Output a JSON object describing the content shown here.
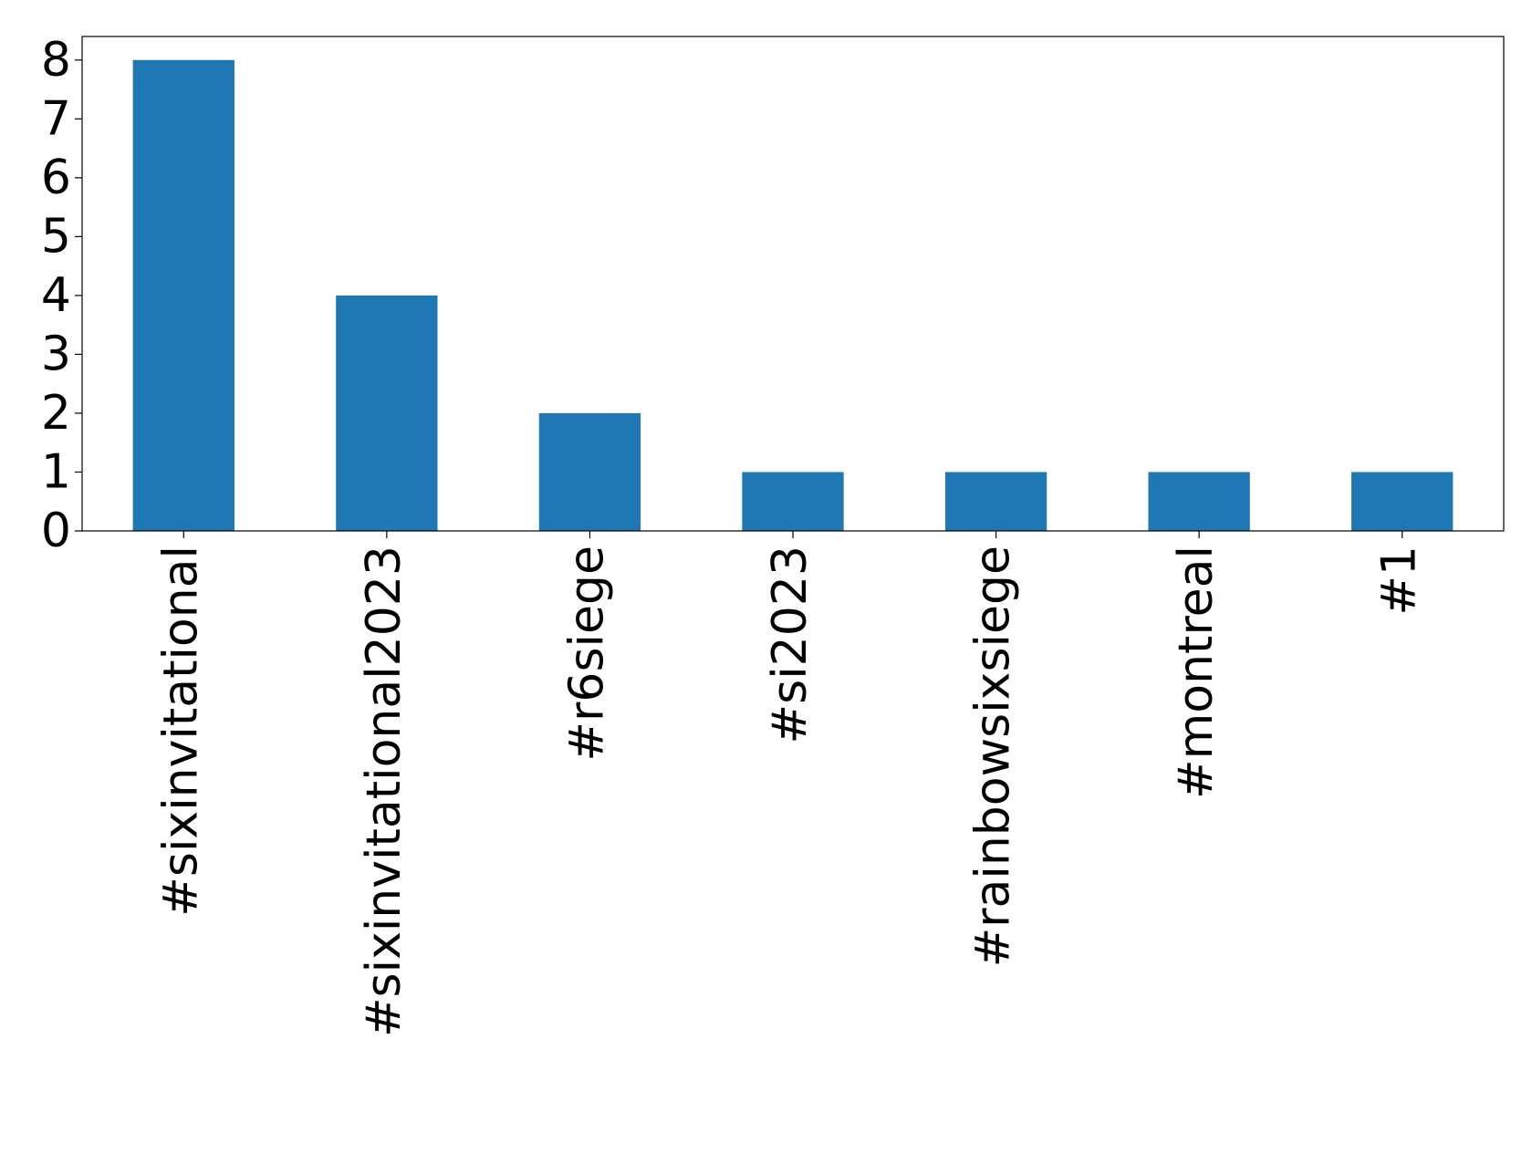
{
  "chart_data": {
    "type": "bar",
    "categories": [
      "#sixinvitational",
      "#sixinvitational2023",
      "#r6siege",
      "#si2023",
      "#rainbowsixsiege",
      "#montreal",
      "#1"
    ],
    "values": [
      8,
      4,
      2,
      1,
      1,
      1,
      1
    ],
    "color": "#1f77b4",
    "ylim": [
      0,
      8.4
    ],
    "yticks": [
      0,
      1,
      2,
      3,
      4,
      5,
      6,
      7,
      8
    ],
    "grid": false
  }
}
